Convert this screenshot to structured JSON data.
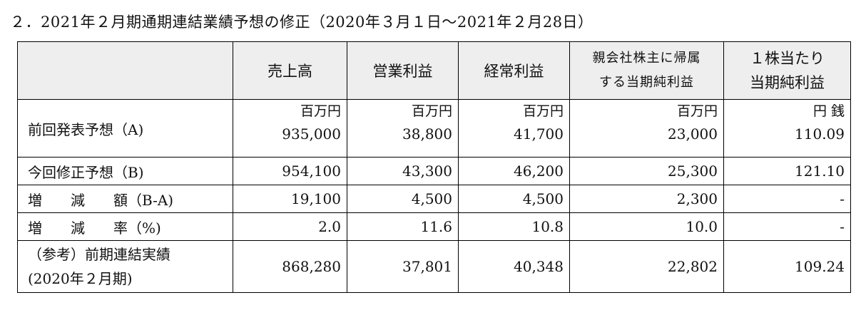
{
  "heading": "２．2021年２月期通期連結業績予想の修正（2020年３月１日～2021年２月28日）",
  "table": {
    "headers": {
      "blank": "",
      "sales": "売上高",
      "operating_profit": "営業利益",
      "ordinary_profit": "経常利益",
      "net_profit_line1": "親会社株主に帰属",
      "net_profit_line2": "する当期純利益",
      "eps_line1": "１株当たり",
      "eps_line2": "当期純利益"
    },
    "units": {
      "sales": "百万円",
      "operating_profit": "百万円",
      "ordinary_profit": "百万円",
      "net_profit": "百万円",
      "eps": "円 銭"
    },
    "rows": {
      "previous": {
        "label": "前回発表予想（A)",
        "sales": "935,000",
        "operating_profit": "38,800",
        "ordinary_profit": "41,700",
        "net_profit": "23,000",
        "eps": "110.09"
      },
      "revised": {
        "label": "今回修正予想（B)",
        "sales": "954,100",
        "operating_profit": "43,300",
        "ordinary_profit": "46,200",
        "net_profit": "25,300",
        "eps": "121.10"
      },
      "change_amount": {
        "label_a": "増",
        "label_b": "減",
        "label_c": "額（B-A)",
        "sales": "19,100",
        "operating_profit": "4,500",
        "ordinary_profit": "4,500",
        "net_profit": "2,300",
        "eps": "-"
      },
      "change_rate": {
        "label_a": "増",
        "label_b": "減",
        "label_c": "率（%)",
        "sales": "2.0",
        "operating_profit": "11.6",
        "ordinary_profit": "10.8",
        "net_profit": "10.0",
        "eps": "-"
      },
      "prior_year": {
        "label_line1": "（参考）前期連結実績",
        "label_line2": "(2020年２月期)",
        "sales": "868,280",
        "operating_profit": "37,801",
        "ordinary_profit": "40,348",
        "net_profit": "22,802",
        "eps": "109.24"
      }
    }
  }
}
